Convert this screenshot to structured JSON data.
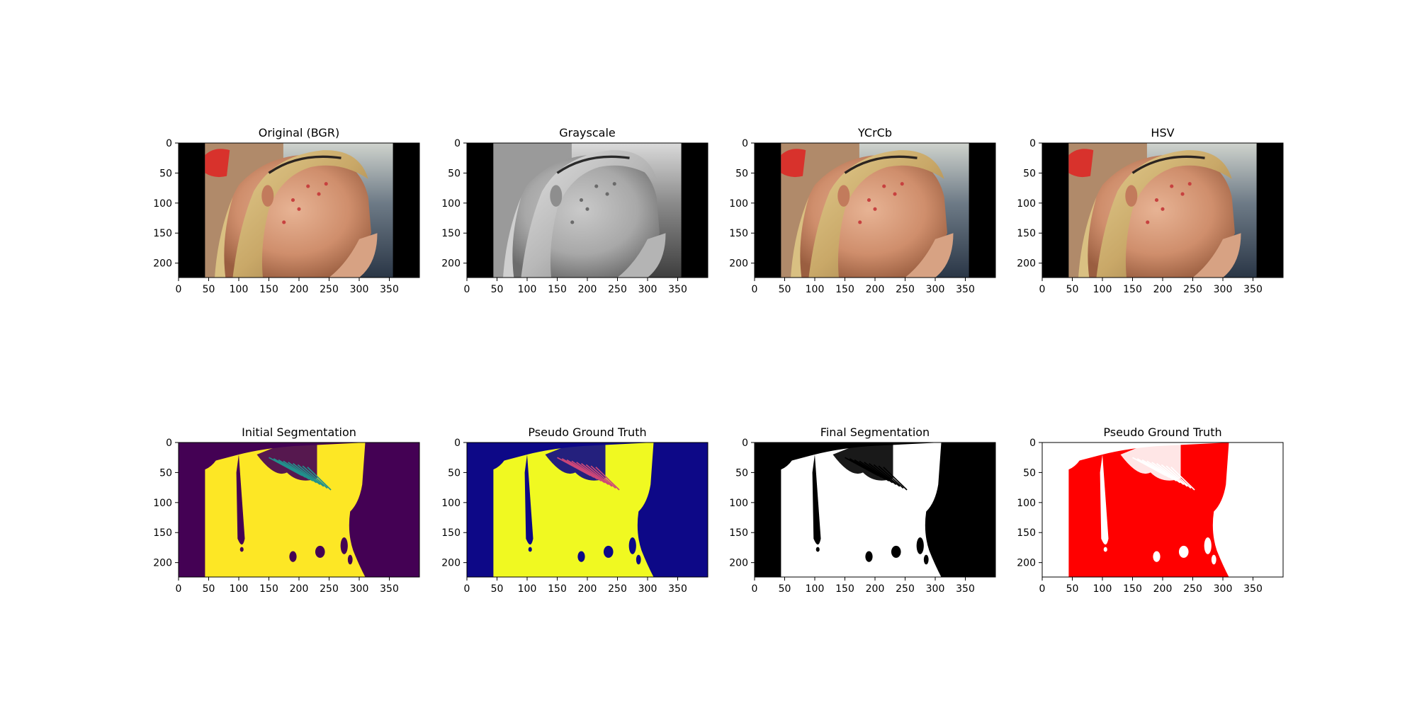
{
  "chart_data": [
    {
      "type": "image",
      "title": "Original (BGR)",
      "render": "photo",
      "xlim": [
        0,
        400
      ],
      "ylim": [
        224,
        0
      ],
      "xticks": [
        0,
        50,
        100,
        150,
        200,
        250,
        300,
        350
      ],
      "yticks": [
        0,
        50,
        100,
        150,
        200
      ],
      "colors": {
        "pad": "#000000"
      }
    },
    {
      "type": "image",
      "title": "Grayscale",
      "render": "gray",
      "xlim": [
        0,
        400
      ],
      "ylim": [
        224,
        0
      ],
      "xticks": [
        0,
        50,
        100,
        150,
        200,
        250,
        300,
        350
      ],
      "yticks": [
        0,
        50,
        100,
        150,
        200
      ],
      "colors": {
        "pad": "#000000"
      }
    },
    {
      "type": "image",
      "title": "YCrCb",
      "render": "photo",
      "xlim": [
        0,
        400
      ],
      "ylim": [
        224,
        0
      ],
      "xticks": [
        0,
        50,
        100,
        150,
        200,
        250,
        300,
        350
      ],
      "yticks": [
        0,
        50,
        100,
        150,
        200
      ],
      "colors": {
        "pad": "#000000"
      }
    },
    {
      "type": "image",
      "title": "HSV",
      "render": "photo",
      "xlim": [
        0,
        400
      ],
      "ylim": [
        224,
        0
      ],
      "xticks": [
        0,
        50,
        100,
        150,
        200,
        250,
        300,
        350
      ],
      "yticks": [
        0,
        50,
        100,
        150,
        200
      ],
      "colors": {
        "pad": "#000000"
      }
    },
    {
      "type": "mask",
      "title": "Initial Segmentation",
      "xlim": [
        0,
        400
      ],
      "ylim": [
        224,
        0
      ],
      "xticks": [
        0,
        50,
        100,
        150,
        200,
        250,
        300,
        350
      ],
      "yticks": [
        0,
        50,
        100,
        150,
        200
      ],
      "colors": {
        "background": "#440154",
        "foreground": "#fde725",
        "edge": "#21918c"
      }
    },
    {
      "type": "mask",
      "title": "Pseudo Ground Truth",
      "xlim": [
        0,
        400
      ],
      "ylim": [
        224,
        0
      ],
      "xticks": [
        0,
        50,
        100,
        150,
        200,
        250,
        300,
        350
      ],
      "yticks": [
        0,
        50,
        100,
        150,
        200
      ],
      "colors": {
        "background": "#0d0887",
        "foreground": "#f0f921",
        "edge": "#cc4778"
      }
    },
    {
      "type": "mask",
      "title": "Final Segmentation",
      "xlim": [
        0,
        400
      ],
      "ylim": [
        224,
        0
      ],
      "xticks": [
        0,
        50,
        100,
        150,
        200,
        250,
        300,
        350
      ],
      "yticks": [
        0,
        50,
        100,
        150,
        200
      ],
      "colors": {
        "background": "#000000",
        "foreground": "#ffffff",
        "edge": "#000000"
      }
    },
    {
      "type": "mask",
      "title": "Pseudo Ground Truth",
      "xlim": [
        0,
        400
      ],
      "ylim": [
        224,
        0
      ],
      "xticks": [
        0,
        50,
        100,
        150,
        200,
        250,
        300,
        350
      ],
      "yticks": [
        0,
        50,
        100,
        150,
        200
      ],
      "colors": {
        "background": "#ffffff",
        "foreground": "#ff0000",
        "edge": "#ffffff"
      }
    }
  ]
}
